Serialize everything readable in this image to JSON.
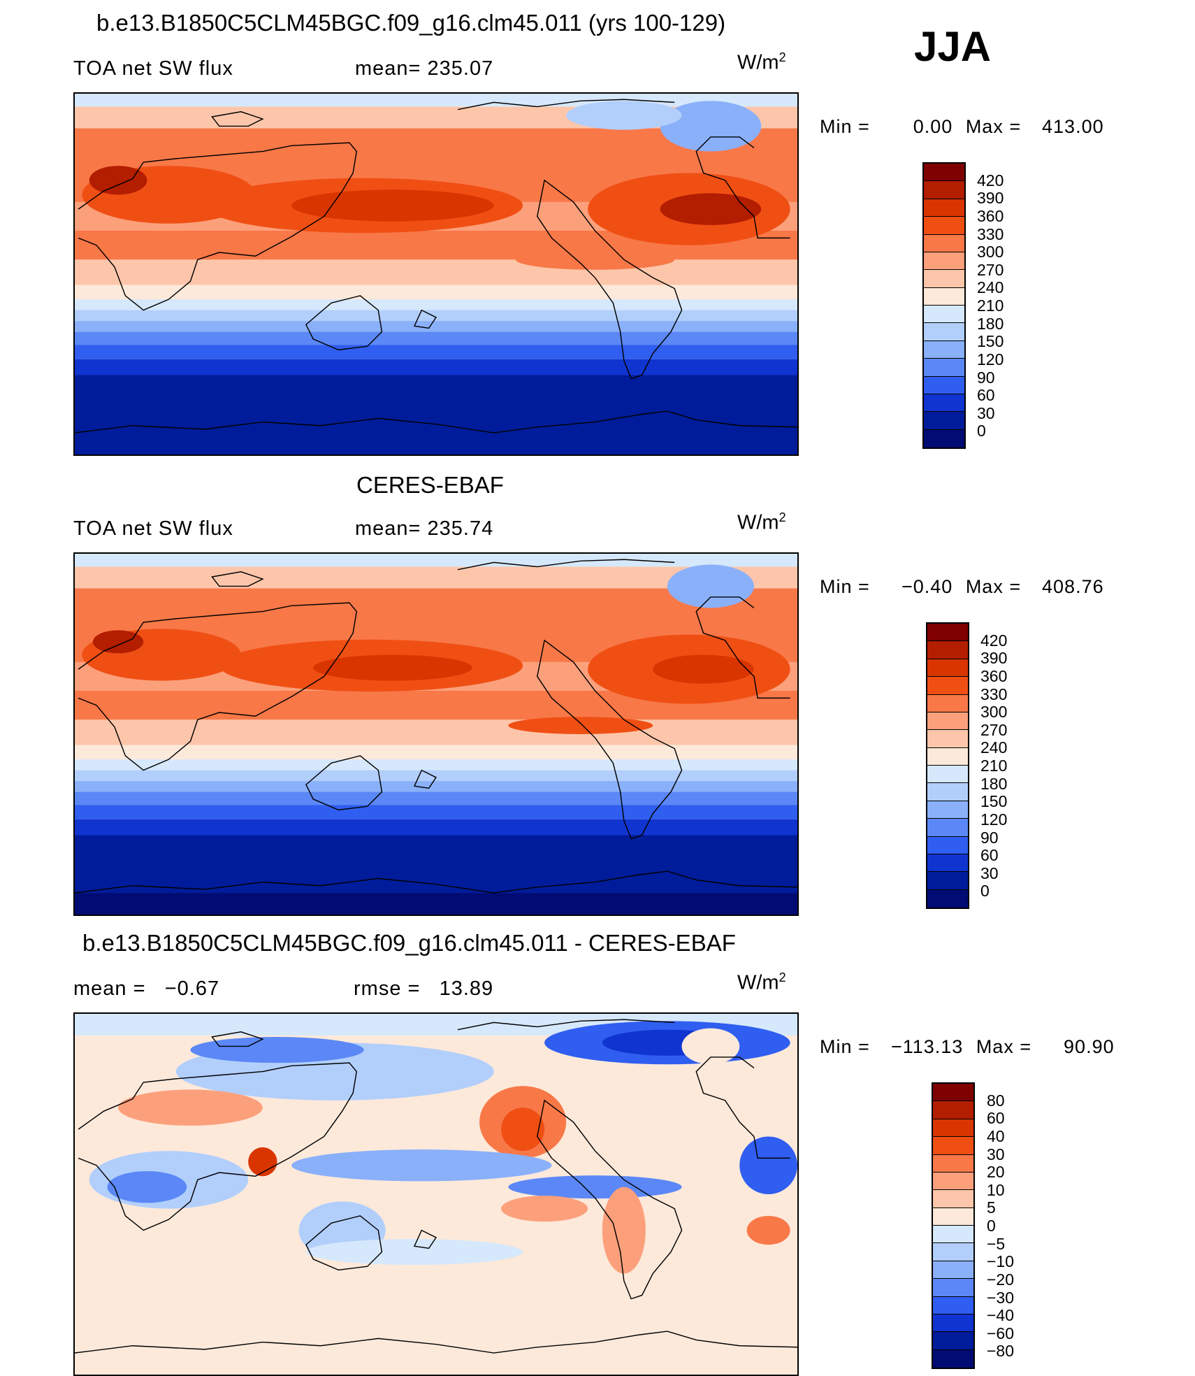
{
  "season": "JJA",
  "units_base": "W/m",
  "units_exp": "2",
  "panels": [
    {
      "title": "b.e13.B1850C5CLM45BGC.f09_g16.clm45.011 (yrs 100-129)",
      "left_label": "TOA net SW flux",
      "stat_label": "mean= 235.07",
      "min_label": "Min =",
      "min_value": "0.00",
      "max_label": "Max =",
      "max_value": "413.00",
      "levels": [
        "420",
        "390",
        "360",
        "330",
        "300",
        "270",
        "240",
        "210",
        "180",
        "150",
        "120",
        "90",
        "60",
        "30",
        "0"
      ]
    },
    {
      "title": "CERES-EBAF",
      "left_label": "TOA net SW flux",
      "stat_label": "mean= 235.74",
      "min_label": "Min =",
      "min_value": "−0.40",
      "max_label": "Max =",
      "max_value": "408.76",
      "levels": [
        "420",
        "390",
        "360",
        "330",
        "300",
        "270",
        "240",
        "210",
        "180",
        "150",
        "120",
        "90",
        "60",
        "30",
        "0"
      ]
    },
    {
      "title": "b.e13.B1850C5CLM45BGC.f09_g16.clm45.011 - CERES-EBAF",
      "left_label": "mean =   −0.67",
      "stat_label": "rmse =   13.89",
      "min_label": "Min =",
      "min_value": "−113.13",
      "max_label": "Max =",
      "max_value": "90.90",
      "levels": [
        "80",
        "60",
        "40",
        "30",
        "20",
        "10",
        "5",
        "0",
        "−5",
        "−10",
        "−20",
        "−30",
        "−40",
        "−60",
        "−80"
      ]
    }
  ],
  "colors": {
    "seq": [
      "#7f0000",
      "#b31d00",
      "#d93500",
      "#f04f14",
      "#f87848",
      "#fca07c",
      "#fdc6aa",
      "#fde9da",
      "#d6e8fb",
      "#b2cffc",
      "#8ab0fa",
      "#5b88f6",
      "#2f5ef0",
      "#1034d0",
      "#001c9a",
      "#000c74"
    ],
    "div": [
      "#7f0000",
      "#b31d00",
      "#d93500",
      "#f04f14",
      "#f87848",
      "#fca07c",
      "#fdc6aa",
      "#fde9da",
      "#d6e8fb",
      "#b2cffc",
      "#8ab0fa",
      "#5b88f6",
      "#2f5ef0",
      "#1034d0",
      "#001c9a",
      "#000c74"
    ],
    "coast": "#000000"
  }
}
